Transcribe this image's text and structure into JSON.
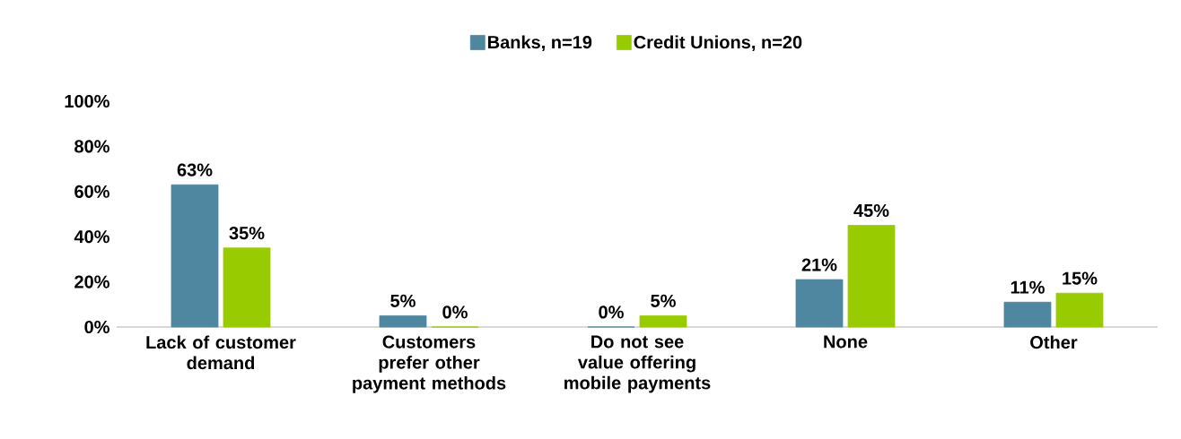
{
  "chart_data": {
    "type": "bar",
    "categories": [
      "Lack of customer demand",
      "Customers prefer other payment methods",
      "Do not see value offering mobile payments",
      "None",
      "Other"
    ],
    "series": [
      {
        "name": "Banks, n=19",
        "color": "#4f87a0",
        "values": [
          63,
          5,
          0,
          21,
          11
        ],
        "value_labels": [
          "63%",
          "5%",
          "0%",
          "21%",
          "11%"
        ]
      },
      {
        "name": "Credit Unions, n=20",
        "color": "#99cc00",
        "values": [
          35,
          0,
          5,
          45,
          15
        ],
        "value_labels": [
          "35%",
          "0%",
          "5%",
          "45%",
          "15%"
        ]
      }
    ],
    "ylim": [
      0,
      100
    ],
    "yticks": [
      {
        "value": 0,
        "label": "0%"
      },
      {
        "value": 20,
        "label": "20%"
      },
      {
        "value": 40,
        "label": "40%"
      },
      {
        "value": 60,
        "label": "60%"
      },
      {
        "value": 80,
        "label": "80%"
      },
      {
        "value": 100,
        "label": "100%"
      }
    ],
    "legend": "top"
  }
}
